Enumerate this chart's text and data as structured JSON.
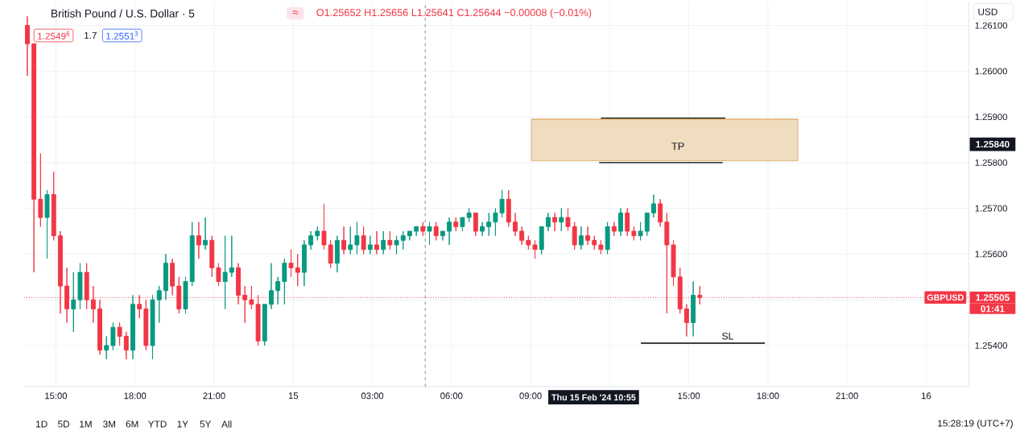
{
  "chart_data": {
    "type": "candlestick",
    "title": "British Pound / U.S. Dollar · 5",
    "subtitle": "O1.25652 H1.25656 L1.25641 C1.25644 −0.00008 (−0.01%)",
    "xlim": [
      "2024-02-14T13:48",
      "2024-02-16T01:37"
    ],
    "ylim": [
      1.2531,
      1.2615
    ],
    "xticks": [
      {
        "value": "2024-02-14T15:00",
        "label": "15:00"
      },
      {
        "value": "2024-02-14T18:00",
        "label": "18:00"
      },
      {
        "value": "2024-02-14T21:00",
        "label": "21:00"
      },
      {
        "value": "2024-02-15T00:00",
        "label": "15"
      },
      {
        "value": "2024-02-15T03:00",
        "label": "03:00"
      },
      {
        "value": "2024-02-15T06:00",
        "label": "06:00"
      },
      {
        "value": "2024-02-15T09:00",
        "label": "09:00"
      },
      {
        "value": "2024-02-15T12:00",
        "label": null
      },
      {
        "value": "2024-02-15T15:00",
        "label": "15:00"
      },
      {
        "value": "2024-02-15T18:00",
        "label": "18:00"
      },
      {
        "value": "2024-02-15T21:00",
        "label": "21:00"
      },
      {
        "value": "2024-02-16T00:00",
        "label": "16"
      }
    ],
    "yticks": [
      {
        "value": 1.254,
        "label": "1.25400"
      },
      {
        "value": 1.255,
        "label": null
      },
      {
        "value": 1.256,
        "label": "1.25600"
      },
      {
        "value": 1.257,
        "label": "1.25700"
      },
      {
        "value": 1.258,
        "label": "1.25800"
      },
      {
        "value": 1.259,
        "label": "1.25900"
      },
      {
        "value": 1.26,
        "label": "1.26000"
      },
      {
        "value": 1.261,
        "label": "1.26100"
      }
    ],
    "grid": true,
    "series": [
      {
        "x": [
          "2024-02-14T13:55",
          "2024-02-14T14:10",
          "2024-02-14T14:25",
          "2024-02-14T14:40",
          "2024-02-14T14:55",
          "2024-02-14T15:10",
          "2024-02-14T15:25",
          "2024-02-14T15:40",
          "2024-02-14T15:55",
          "2024-02-14T16:10",
          "2024-02-14T16:25",
          "2024-02-14T16:40",
          "2024-02-14T16:55",
          "2024-02-14T17:10",
          "2024-02-14T17:25",
          "2024-02-14T17:40",
          "2024-02-14T17:55",
          "2024-02-14T18:10",
          "2024-02-14T18:25",
          "2024-02-14T18:40",
          "2024-02-14T18:55",
          "2024-02-14T19:10",
          "2024-02-14T19:25",
          "2024-02-14T19:40",
          "2024-02-14T19:55",
          "2024-02-14T20:10",
          "2024-02-14T20:25",
          "2024-02-14T20:40",
          "2024-02-14T20:55",
          "2024-02-14T21:10",
          "2024-02-14T21:25",
          "2024-02-14T21:40",
          "2024-02-14T21:55",
          "2024-02-14T22:10",
          "2024-02-14T22:25",
          "2024-02-14T22:40",
          "2024-02-14T22:55",
          "2024-02-14T23:10",
          "2024-02-14T23:25",
          "2024-02-14T23:40",
          "2024-02-14T23:55",
          "2024-02-15T00:10",
          "2024-02-15T00:25",
          "2024-02-15T00:40",
          "2024-02-15T00:55",
          "2024-02-15T01:10",
          "2024-02-15T01:25",
          "2024-02-15T01:40",
          "2024-02-15T01:55",
          "2024-02-15T02:10",
          "2024-02-15T02:25",
          "2024-02-15T02:40",
          "2024-02-15T02:55",
          "2024-02-15T03:10",
          "2024-02-15T03:25",
          "2024-02-15T03:40",
          "2024-02-15T03:55",
          "2024-02-15T04:10",
          "2024-02-15T04:25",
          "2024-02-15T04:40",
          "2024-02-15T04:55",
          "2024-02-15T05:10",
          "2024-02-15T05:25",
          "2024-02-15T05:40",
          "2024-02-15T05:55",
          "2024-02-15T06:10",
          "2024-02-15T06:25",
          "2024-02-15T06:40",
          "2024-02-15T06:55",
          "2024-02-15T07:10",
          "2024-02-15T07:25",
          "2024-02-15T07:40",
          "2024-02-15T07:55",
          "2024-02-15T08:10",
          "2024-02-15T08:25",
          "2024-02-15T08:40",
          "2024-02-15T08:55",
          "2024-02-15T09:10",
          "2024-02-15T09:25",
          "2024-02-15T09:40",
          "2024-02-15T09:55",
          "2024-02-15T10:10",
          "2024-02-15T10:25",
          "2024-02-15T10:40",
          "2024-02-15T10:55",
          "2024-02-15T11:10",
          "2024-02-15T11:25",
          "2024-02-15T11:40",
          "2024-02-15T11:55",
          "2024-02-15T12:10",
          "2024-02-15T12:25",
          "2024-02-15T12:40",
          "2024-02-15T12:55",
          "2024-02-15T13:10",
          "2024-02-15T13:25",
          "2024-02-15T13:40",
          "2024-02-15T13:55",
          "2024-02-15T14:10",
          "2024-02-15T14:25",
          "2024-02-15T14:40",
          "2024-02-15T14:55",
          "2024-02-15T15:10",
          "2024-02-15T15:25"
        ],
        "ohlc": [
          [
            1.261,
            1.2612,
            1.2599,
            1.2606
          ],
          [
            1.2606,
            1.2606,
            1.2556,
            1.2572
          ],
          [
            1.2572,
            1.2582,
            1.2566,
            1.2568
          ],
          [
            1.2568,
            1.2574,
            1.2559,
            1.2573
          ],
          [
            1.2573,
            1.2578,
            1.2563,
            1.2564
          ],
          [
            1.2564,
            1.2565,
            1.2547,
            1.2553
          ],
          [
            1.2553,
            1.2557,
            1.2545,
            1.2548
          ],
          [
            1.2548,
            1.2556,
            1.2543,
            1.255
          ],
          [
            1.255,
            1.2558,
            1.2548,
            1.2556
          ],
          [
            1.2556,
            1.2558,
            1.2548,
            1.255
          ],
          [
            1.255,
            1.2553,
            1.2545,
            1.2548
          ],
          [
            1.2548,
            1.255,
            1.2538,
            1.2539
          ],
          [
            1.2539,
            1.2542,
            1.2537,
            1.254
          ],
          [
            1.254,
            1.2545,
            1.2539,
            1.2544
          ],
          [
            1.2544,
            1.2545,
            1.254,
            1.2542
          ],
          [
            1.2542,
            1.2543,
            1.2537,
            1.2539
          ],
          [
            1.2539,
            1.2551,
            1.2537,
            1.2549
          ],
          [
            1.2549,
            1.2551,
            1.2546,
            1.2548
          ],
          [
            1.2548,
            1.255,
            1.2539,
            1.254
          ],
          [
            1.254,
            1.2551,
            1.2537,
            1.255
          ],
          [
            1.255,
            1.2553,
            1.2545,
            1.2552
          ],
          [
            1.2552,
            1.256,
            1.255,
            1.2558
          ],
          [
            1.2558,
            1.2559,
            1.2551,
            1.2553
          ],
          [
            1.2553,
            1.2555,
            1.2547,
            1.2548
          ],
          [
            1.2548,
            1.2555,
            1.2547,
            1.2554
          ],
          [
            1.2554,
            1.2567,
            1.2553,
            1.2564
          ],
          [
            1.2564,
            1.2567,
            1.2559,
            1.2562
          ],
          [
            1.2562,
            1.2568,
            1.2561,
            1.2563
          ],
          [
            1.2563,
            1.2564,
            1.2555,
            1.2557
          ],
          [
            1.2557,
            1.2558,
            1.2553,
            1.2554
          ],
          [
            1.2554,
            1.2564,
            1.2548,
            1.2556
          ],
          [
            1.2556,
            1.2564,
            1.2555,
            1.2557
          ],
          [
            1.2557,
            1.2558,
            1.2549,
            1.2551
          ],
          [
            1.2551,
            1.2553,
            1.2545,
            1.255
          ],
          [
            1.255,
            1.2553,
            1.2548,
            1.2549
          ],
          [
            1.2549,
            1.2551,
            1.254,
            1.2541
          ],
          [
            1.2541,
            1.2549,
            1.254,
            1.2549
          ],
          [
            1.2549,
            1.2558,
            1.2548,
            1.2552
          ],
          [
            1.2552,
            1.2555,
            1.2549,
            1.2554
          ],
          [
            1.2554,
            1.2559,
            1.2549,
            1.2558
          ],
          [
            1.2558,
            1.2561,
            1.2555,
            1.2557
          ],
          [
            1.2557,
            1.256,
            1.2553,
            1.2556
          ],
          [
            1.2556,
            1.2563,
            1.2553,
            1.2562
          ],
          [
            1.2562,
            1.2565,
            1.2561,
            1.2564
          ],
          [
            1.2564,
            1.2566,
            1.2563,
            1.2565
          ],
          [
            1.2565,
            1.2571,
            1.2561,
            1.2562
          ],
          [
            1.2562,
            1.2563,
            1.2557,
            1.2558
          ],
          [
            1.2558,
            1.2564,
            1.2556,
            1.2563
          ],
          [
            1.2563,
            1.2566,
            1.256,
            1.2561
          ],
          [
            1.2561,
            1.2566,
            1.256,
            1.2562
          ],
          [
            1.2562,
            1.2567,
            1.256,
            1.2564
          ],
          [
            1.2564,
            1.2566,
            1.256,
            1.2561
          ],
          [
            1.2561,
            1.2564,
            1.256,
            1.2562
          ],
          [
            1.2562,
            1.2565,
            1.256,
            1.2561
          ],
          [
            1.2561,
            1.2565,
            1.256,
            1.2563
          ],
          [
            1.2563,
            1.2565,
            1.2561,
            1.2562
          ],
          [
            1.2562,
            1.2564,
            1.256,
            1.2563
          ],
          [
            1.2563,
            1.2565,
            1.2561,
            1.2564
          ],
          [
            1.2564,
            1.2565,
            1.2563,
            1.2565
          ],
          [
            1.2565,
            1.2566,
            1.2564,
            1.2566
          ],
          [
            1.2566,
            1.2567,
            1.2564,
            1.2565
          ],
          [
            1.2565,
            1.2567,
            1.2562,
            1.2566
          ],
          [
            1.2566,
            1.2567,
            1.2563,
            1.2564
          ],
          [
            1.2564,
            1.2565,
            1.2563,
            1.2565
          ],
          [
            1.2565,
            1.2568,
            1.2562,
            1.2567
          ],
          [
            1.2567,
            1.2568,
            1.2565,
            1.2566
          ],
          [
            1.2566,
            1.2568,
            1.2565,
            1.2568
          ],
          [
            1.2568,
            1.257,
            1.2567,
            1.2569
          ],
          [
            1.2569,
            1.2569,
            1.2564,
            1.2565
          ],
          [
            1.2565,
            1.2567,
            1.2564,
            1.2566
          ],
          [
            1.2566,
            1.2569,
            1.2564,
            1.2567
          ],
          [
            1.2567,
            1.257,
            1.2564,
            1.2569
          ],
          [
            1.2569,
            1.2574,
            1.2568,
            1.2572
          ],
          [
            1.2572,
            1.2574,
            1.2566,
            1.2567
          ],
          [
            1.2567,
            1.2569,
            1.2564,
            1.2565
          ],
          [
            1.2565,
            1.2566,
            1.2562,
            1.2563
          ],
          [
            1.2563,
            1.2564,
            1.2561,
            1.2562
          ],
          [
            1.2562,
            1.2563,
            1.2559,
            1.2561
          ],
          [
            1.2561,
            1.2566,
            1.256,
            1.2566
          ],
          [
            1.2566,
            1.2569,
            1.2565,
            1.2568
          ],
          [
            1.2568,
            1.2569,
            1.2565,
            1.2567
          ],
          [
            1.2567,
            1.257,
            1.2565,
            1.2568
          ],
          [
            1.2568,
            1.257,
            1.2565,
            1.2566
          ],
          [
            1.2566,
            1.2567,
            1.2561,
            1.2562
          ],
          [
            1.2562,
            1.2566,
            1.2561,
            1.2564
          ],
          [
            1.2564,
            1.2566,
            1.2562,
            1.2563
          ],
          [
            1.2563,
            1.2564,
            1.2561,
            1.2562
          ],
          [
            1.2562,
            1.2563,
            1.256,
            1.2561
          ],
          [
            1.2561,
            1.2567,
            1.256,
            1.2566
          ],
          [
            1.2566,
            1.2567,
            1.2564,
            1.2565
          ],
          [
            1.2565,
            1.257,
            1.2564,
            1.2569
          ],
          [
            1.2569,
            1.257,
            1.2564,
            1.2565
          ],
          [
            1.2565,
            1.2566,
            1.2563,
            1.2564
          ],
          [
            1.2564,
            1.2567,
            1.2563,
            1.2565
          ],
          [
            1.2565,
            1.2569,
            1.2564,
            1.2569
          ],
          [
            1.2569,
            1.2573,
            1.2568,
            1.2571
          ],
          [
            1.2571,
            1.2572,
            1.2566,
            1.2567
          ],
          [
            1.2567,
            1.2569,
            1.2547,
            1.2562
          ],
          [
            1.2562,
            1.2563,
            1.2553,
            1.2555
          ],
          [
            1.2555,
            1.2557,
            1.2547,
            1.2548
          ],
          [
            1.2548,
            1.2549,
            1.2542,
            1.2545
          ],
          [
            1.2545,
            1.2554,
            1.2542,
            1.2551
          ],
          [
            1.2551,
            1.2553,
            1.2549,
            1.25505
          ]
        ],
        "colors": [
          "#f23645",
          "#f23645",
          "#f23645",
          "#089981",
          "#f23645",
          "#f23645",
          "#f23645",
          "#089981",
          "#089981",
          "#f23645",
          "#f23645",
          "#f23645",
          "#089981",
          "#089981",
          "#f23645",
          "#f23645",
          "#089981",
          "#f23645",
          "#f23645",
          "#089981",
          "#089981",
          "#089981",
          "#f23645",
          "#f23645",
          "#089981",
          "#089981",
          "#f23645",
          "#089981",
          "#f23645",
          "#f23645",
          "#089981",
          "#089981",
          "#f23645",
          "#f23645",
          "#f23645",
          "#f23645",
          "#089981",
          "#089981",
          "#089981",
          "#089981",
          "#f23645",
          "#f23645",
          "#089981",
          "#089981",
          "#089981",
          "#f23645",
          "#f23645",
          "#089981",
          "#f23645",
          "#089981",
          "#089981",
          "#f23645",
          "#089981",
          "#f23645",
          "#089981",
          "#f23645",
          "#089981",
          "#089981",
          "#089981",
          "#089981",
          "#f23645",
          "#089981",
          "#f23645",
          "#089981",
          "#089981",
          "#f23645",
          "#089981",
          "#089981",
          "#f23645",
          "#089981",
          "#089981",
          "#089981",
          "#089981",
          "#f23645",
          "#f23645",
          "#f23645",
          "#f23645",
          "#f23645",
          "#089981",
          "#089981",
          "#f23645",
          "#089981",
          "#f23645",
          "#f23645",
          "#089981",
          "#f23645",
          "#f23645",
          "#f23645",
          "#089981",
          "#f23645",
          "#089981",
          "#f23645",
          "#f23645",
          "#089981",
          "#089981",
          "#089981",
          "#f23645",
          "#f23645",
          "#f23645",
          "#f23645",
          "#f23645",
          "#089981",
          "#f23645"
        ]
      },
      {
        "type": "line",
        "x": [
          "2024-02-15T11:40",
          "2024-02-15T16:23"
        ],
        "values": [
          1.25897,
          1.25897
        ],
        "color": "#000000"
      },
      {
        "type": "line",
        "x": [
          "2024-02-15T11:36",
          "2024-02-15T16:17"
        ],
        "values": [
          1.258,
          1.258
        ],
        "color": "#000000"
      },
      {
        "type": "line",
        "name": "SL",
        "x": [
          "2024-02-15T13:11",
          "2024-02-15T17:53"
        ],
        "values": [
          1.25405,
          1.25405
        ],
        "color": "#000000"
      },
      {
        "type": "line",
        "name": "TP",
        "x": [
          "2024-02-15T09:02",
          "2024-02-15T19:08"
        ],
        "values": [
          1.25895,
          1.25895
        ],
        "lower": [
          1.25804,
          1.25804
        ],
        "upper": [
          1.25895,
          1.25895
        ],
        "color": "#d9a860"
      }
    ],
    "ref_lines": [
      {
        "axis": "x",
        "value": "2024-02-15T05:00",
        "color": "#6a6d78",
        "line_style": "dashed"
      },
      {
        "axis": "y",
        "value": 1.25505,
        "label": "1.25505",
        "color": "#f23645",
        "line_style": "dotted"
      }
    ],
    "annotations": [
      "1.2549$^{6}$",
      "1.7",
      "1.2551$^{3}$",
      "≈",
      "USD",
      "1.25840",
      "Thu 15 Feb '24 10:55",
      {
        "text": "GBPUSD",
        "y": 1.25505
      },
      "01:41",
      "1D",
      "5D",
      "1M",
      "3M",
      "6M",
      "YTD",
      "1Y",
      "5Y",
      "All",
      "15:28:19 (UTC+7)"
    ]
  }
}
